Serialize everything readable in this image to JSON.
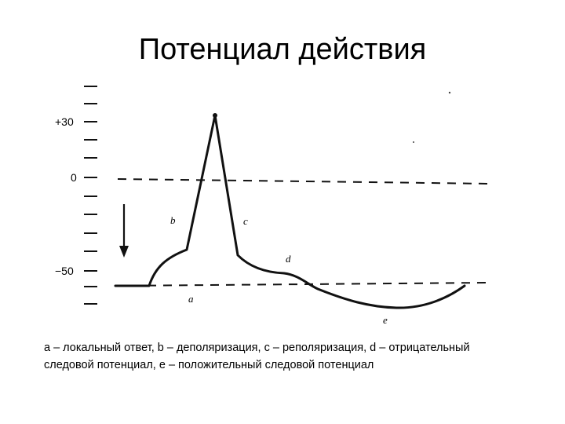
{
  "slide": {
    "title": "Потенциал действия",
    "caption_line1": "a – локальный ответ, b – деполяризация,  c – реполяризация, d – отрицательный",
    "caption_line2": "следовой потенциал, e – положительный следовой потенциал"
  },
  "diagram": {
    "y_labels": {
      "plus30": "+30",
      "zero": "0",
      "minus50": "−50"
    },
    "segments": {
      "a": "a",
      "b": "b",
      "c": "c",
      "d": "d",
      "e": "e"
    },
    "colors": {
      "ink": "#111111"
    }
  }
}
